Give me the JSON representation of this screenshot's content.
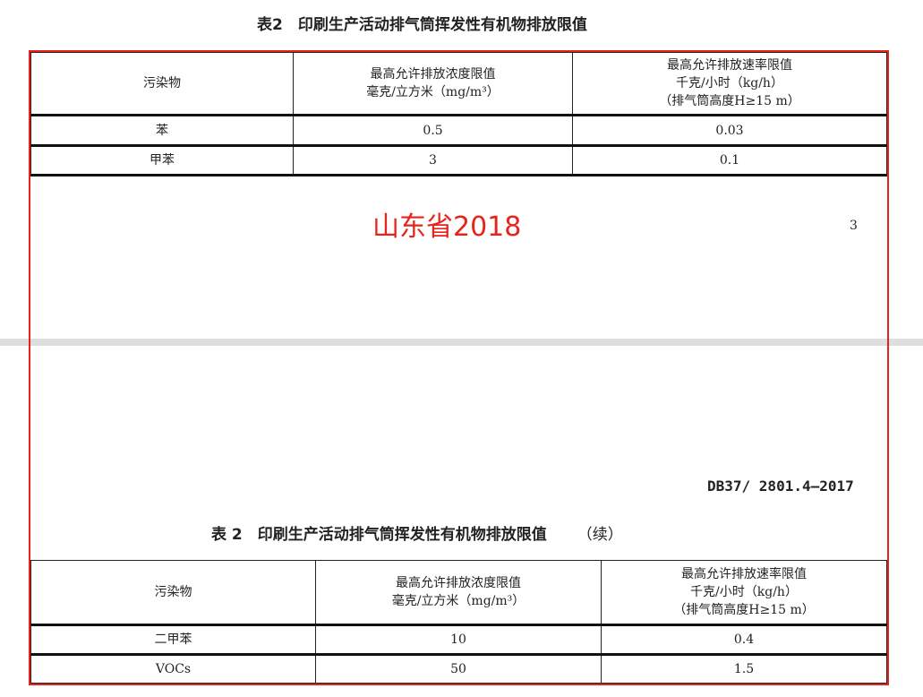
{
  "table1": {
    "title": "表2　印刷生产活动排气筒挥发性有机物排放限值",
    "headers": {
      "c1": "污染物",
      "c2a": "最高允许排放浓度限值",
      "c2b": "毫克/立方米（mg/m³）",
      "c3a": "最高允许排放速率限值",
      "c3b": "千克/小时（kg/h）",
      "c3c": "（排气筒高度H≥15 m）"
    },
    "rows": [
      {
        "pollutant": "苯",
        "conc": "0.5",
        "rate": "0.03"
      },
      {
        "pollutant": "甲苯",
        "conc": "3",
        "rate": "0.1"
      }
    ]
  },
  "annotation": "山东省2018",
  "page_number": "3",
  "standard_code": "DB37/ 2801.4—2017",
  "table2": {
    "title": "表 2　印刷生产活动排气筒挥发性有机物排放限值",
    "title_suffix": "（续）",
    "headers": {
      "c1": "污染物",
      "c2a": "最高允许排放浓度限值",
      "c2b": "毫克/立方米（mg/m³）",
      "c3a": "最高允许排放速率限值",
      "c3b": "千克/小时（kg/h）",
      "c3c": "（排气筒高度H≥15 m）"
    },
    "rows": [
      {
        "pollutant": "二甲苯",
        "conc": "10",
        "rate": "0.4"
      },
      {
        "pollutant": "VOCs",
        "conc": "50",
        "rate": "1.5"
      }
    ]
  },
  "colors": {
    "annotation_red": "#e8231b"
  }
}
